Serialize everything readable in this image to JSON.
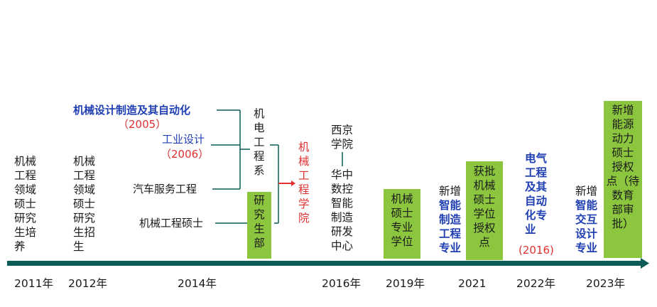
{
  "col_2011": "机械\n工程\n领域\n硕士\n研究\n生培\n养",
  "col_2012": "机械\n工程\n领域\n硕士\n研究\n生招\n生",
  "jixie_design": "机械设计制造及其自动化",
  "jixie_design_year": "（2005）",
  "industrial_design": "工业设计",
  "industrial_design_year": "（2006）",
  "auto_service": "汽车服务工程",
  "mech_master": "机械工程硕士",
  "jidian_dept": "机\n电\n工\n程\n系",
  "grad_dept": "研\n究\n生\n部",
  "mech_college": "机\n械\n工\n程\n学\n院",
  "xijing": "西京\n学院",
  "huazhong": "华中\n数控\n智能\n制造\n研发\n中心",
  "box_2019": "机械\n硕士\n专业\n学位",
  "new_2021_prefix": "新增",
  "new_2021_blue": "智能\n制造\n工程\n专业",
  "box_2021": "获批\n机械\n硕士\n学位\n授权\n点",
  "ee_2022": "电气\n工程\n及其\n自动\n化专\n业",
  "ee_2022_year": "(2016)",
  "new_2023_prefix": "新增",
  "new_2023_blue": "智能\n交互\n设计\n专业",
  "box_2023": "新增\n能源\n动力\n硕士\n授权\n点（待\n数育\n部审\n批）",
  "years": [
    "2011年",
    "2012年",
    "2014年",
    "2016年",
    "2019年",
    "2021",
    "2022年",
    "2023年"
  ],
  "colors": {
    "green": "#8cc63f",
    "teal_line": "#0b5c55",
    "blue": "#1f3fb3",
    "red": "#e03030"
  }
}
